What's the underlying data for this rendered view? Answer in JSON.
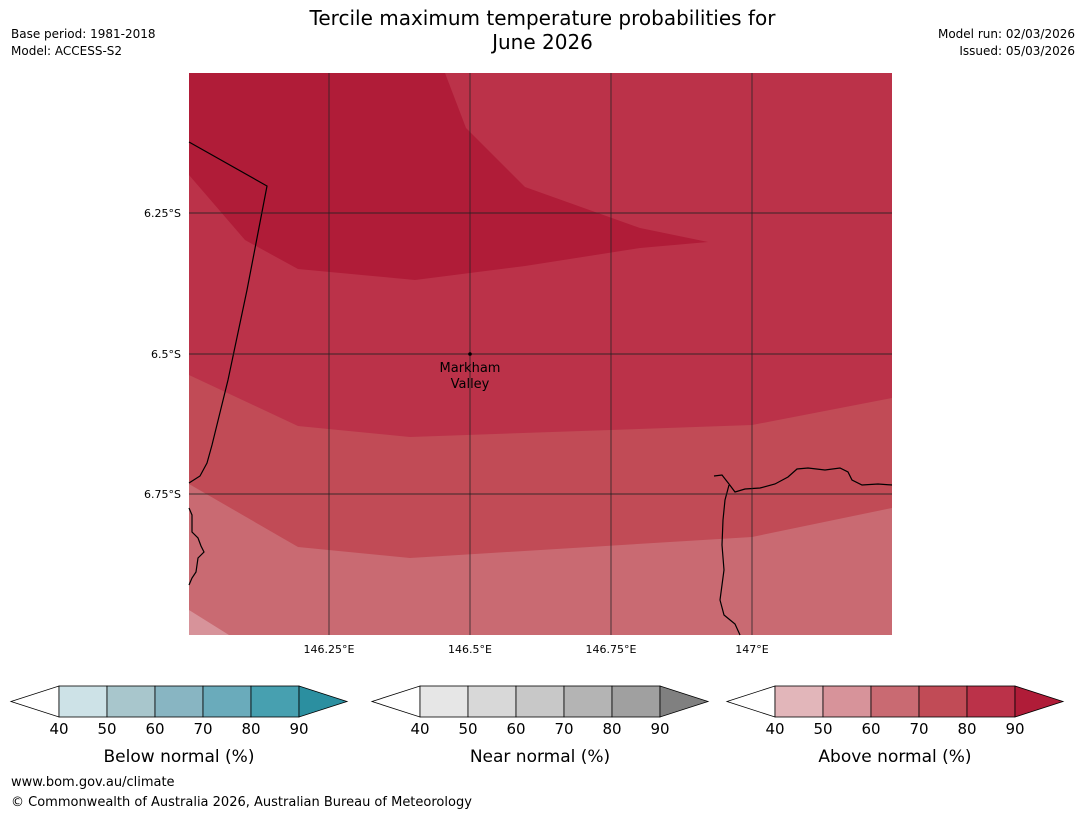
{
  "header": {
    "title_line1": "Tercile maximum temperature probabilities for",
    "title_line2": "June 2026",
    "base_period": "Base period: 1981-2018",
    "model": "Model: ACCESS-S2",
    "model_run": "Model run: 02/03/2026",
    "issued": "Issued: 05/03/2026"
  },
  "map": {
    "lat_labels": [
      "6.25°S",
      "6.5°S",
      "6.75°S"
    ],
    "lon_labels": [
      "146.25°E",
      "146.5°E",
      "146.75°E",
      "147°E"
    ],
    "place_label_line1": "Markham",
    "place_label_line2": "Valley",
    "colors": {
      "above_90": "#b01c38",
      "above_80": "#bb3249",
      "above_70": "#c14b56",
      "above_60": "#c96a72",
      "above_50": "#d7939a"
    }
  },
  "legends": [
    {
      "label": "Below normal (%)",
      "ticks": [
        "40",
        "50",
        "60",
        "70",
        "80",
        "90"
      ],
      "colors": [
        "#cde2e7",
        "#a8c6cc",
        "#88b5c2",
        "#6aabbb",
        "#47a0b0",
        "#2b8fa0"
      ]
    },
    {
      "label": "Near normal (%)",
      "ticks": [
        "40",
        "50",
        "60",
        "70",
        "80",
        "90"
      ],
      "colors": [
        "#e6e6e6",
        "#d8d8d8",
        "#c8c8c8",
        "#b4b4b4",
        "#a0a0a0",
        "#808080"
      ]
    },
    {
      "label": "Above normal (%)",
      "ticks": [
        "40",
        "50",
        "60",
        "70",
        "80",
        "90"
      ],
      "colors": [
        "#e2b6ba",
        "#d7939a",
        "#c96a72",
        "#c14b56",
        "#bb3249",
        "#b01c38"
      ]
    }
  ],
  "footer": {
    "url": "www.bom.gov.au/climate",
    "copyright": "© Commonwealth of Australia 2026, Australian Bureau of Meteorology"
  }
}
